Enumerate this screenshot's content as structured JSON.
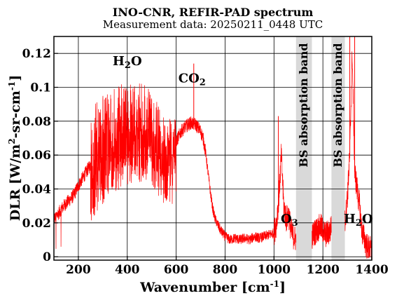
{
  "chart_data": {
    "type": "line",
    "title": "INO-CNR, REFIR-PAD spectrum",
    "subtitle": "Measurement data: 20250211_0448 UTC",
    "xlabel": "Wavenumber [cm",
    "xlabel_sup": "-1",
    "xlabel_end": "]",
    "ylabel_parts": [
      "DLR [W/m",
      "2",
      "-sr-cm",
      "-1",
      "]"
    ],
    "xlim": [
      100,
      1400
    ],
    "ylim": [
      -0.002,
      0.13
    ],
    "xticks": [
      200,
      400,
      600,
      800,
      1000,
      1200,
      1400
    ],
    "xtick_labels": [
      "200",
      "400",
      "600",
      "800",
      "1000",
      "1200",
      "1400"
    ],
    "yticks": [
      0,
      0.02,
      0.04,
      0.06,
      0.08,
      0.1,
      0.12
    ],
    "ytick_labels": [
      "0",
      "0.02",
      "0.04",
      "0.06",
      "0.08",
      "0.1",
      "0.12"
    ],
    "grid": true,
    "line_color": "#ff0000",
    "band_color": "#d9d9d9",
    "bands": [
      {
        "x0": 1090,
        "x1": 1155,
        "label": "BS absorption band"
      },
      {
        "x0": 1235,
        "x1": 1290,
        "label": "BS absorption band"
      }
    ],
    "annotations": [
      {
        "x": 400,
        "y": 0.113,
        "parts": [
          {
            "t": "H"
          },
          {
            "t": "2",
            "sub": true
          },
          {
            "t": "O"
          }
        ]
      },
      {
        "x": 665,
        "y": 0.103,
        "parts": [
          {
            "t": "CO"
          },
          {
            "t": "2",
            "sub": true
          }
        ]
      },
      {
        "x": 1063,
        "y": 0.02,
        "parts": [
          {
            "t": "O"
          },
          {
            "t": "3",
            "sub": true
          }
        ]
      },
      {
        "x": 1345,
        "y": 0.02,
        "parts": [
          {
            "t": "H"
          },
          {
            "t": "2",
            "sub": true
          },
          {
            "t": "O"
          }
        ]
      }
    ],
    "series": [
      {
        "x": [
          100,
          120,
          140,
          160,
          180,
          200,
          220,
          240,
          260,
          280,
          300,
          320,
          340,
          360,
          380,
          400,
          420,
          440,
          460,
          480,
          500,
          520,
          540,
          560,
          580,
          600,
          620,
          640,
          660,
          680,
          700,
          710,
          720,
          730,
          740,
          750,
          760,
          780,
          800,
          820,
          840,
          860,
          880,
          900,
          920,
          940,
          960,
          980,
          1000,
          1010,
          1020,
          1030,
          1040,
          1050,
          1060,
          1070,
          1080,
          1090,
          1155,
          1170,
          1190,
          1210,
          1230,
          1235,
          1290,
          1300,
          1310,
          1320,
          1330,
          1340,
          1350,
          1360,
          1380,
          1400
        ],
        "y": [
          0.022,
          0.026,
          0.03,
          0.033,
          0.036,
          0.042,
          0.047,
          0.052,
          0.057,
          0.061,
          0.065,
          0.068,
          0.071,
          0.073,
          0.075,
          0.076,
          0.077,
          0.078,
          0.078,
          0.077,
          0.076,
          0.072,
          0.066,
          0.062,
          0.064,
          0.068,
          0.074,
          0.077,
          0.079,
          0.078,
          0.074,
          0.07,
          0.062,
          0.05,
          0.038,
          0.028,
          0.022,
          0.016,
          0.012,
          0.01,
          0.011,
          0.01,
          0.011,
          0.01,
          0.012,
          0.011,
          0.012,
          0.013,
          0.014,
          0.02,
          0.035,
          0.06,
          0.03,
          0.022,
          0.025,
          0.015,
          0.012,
          0.01,
          0.012,
          0.015,
          0.018,
          0.013,
          0.015,
          0.02,
          0.02,
          0.035,
          0.06,
          0.12,
          0.05,
          0.04,
          0.03,
          0.015,
          0.006,
          0.004
        ]
      }
    ],
    "spikes": [
      {
        "x": 672,
        "y": 0.114
      },
      {
        "x": 1018,
        "y": 0.083
      },
      {
        "x": 1310,
        "y": 0.13
      },
      {
        "x": 1330,
        "y": 0.13
      }
    ]
  }
}
